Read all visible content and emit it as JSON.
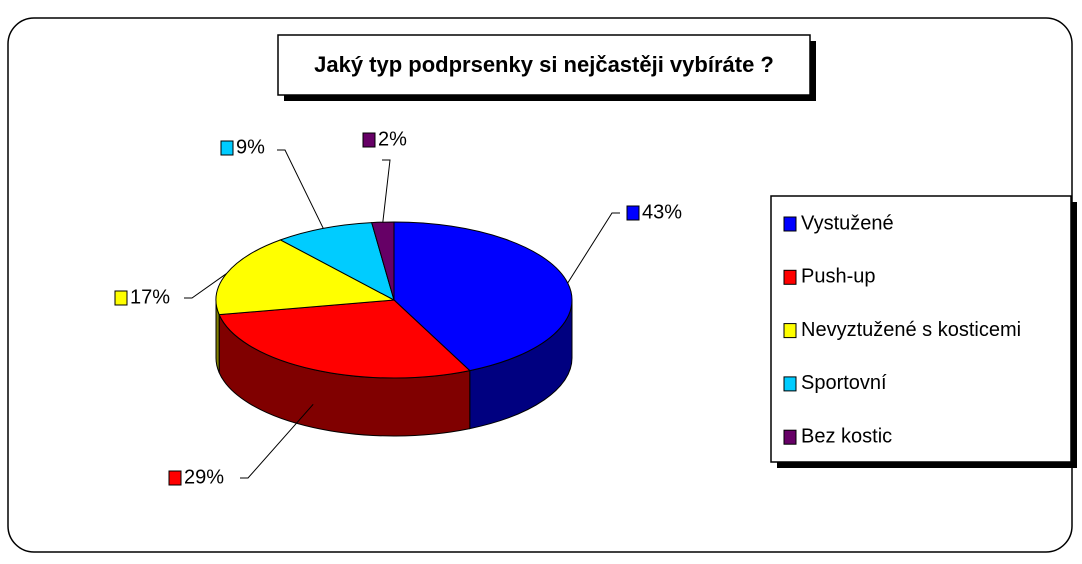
{
  "chart_data": {
    "type": "pie",
    "title": "Jaký typ podprsenky si nejčastěji vybíráte ?",
    "categories": [
      "Vystužené",
      "Push-up",
      "Nevyztužené s kosticemi",
      "Sportovní",
      "Bez kostic"
    ],
    "values": [
      43,
      29,
      17,
      9,
      2
    ],
    "value_labels": [
      "43%",
      "29%",
      "17%",
      "9%",
      "2%"
    ],
    "colors": [
      "#0000ff",
      "#ff0000",
      "#ffff00",
      "#00ccff",
      "#660066"
    ],
    "legend": "right"
  }
}
